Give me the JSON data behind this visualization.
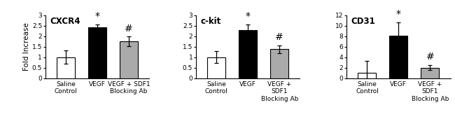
{
  "panels": [
    {
      "title": "CXCR4",
      "ylabel": "Fold Increase",
      "ylim": [
        0,
        3
      ],
      "yticks": [
        0,
        0.5,
        1.0,
        1.5,
        2.0,
        2.5,
        3.0
      ],
      "ytick_labels": [
        "0",
        "0.5",
        "1",
        "1.5",
        "2",
        "2.5",
        "3"
      ],
      "bar_values": [
        1.0,
        2.42,
        1.75
      ],
      "bar_errors": [
        0.32,
        0.15,
        0.22
      ],
      "bar_colors": [
        "white",
        "black",
        "#aaaaaa"
      ],
      "bar_edge_colors": [
        "black",
        "black",
        "black"
      ],
      "significance": [
        "",
        "*",
        "#"
      ],
      "xtick_labels": [
        "Saline\nControl",
        "VEGF",
        "VEGF + SDF1\nBlocking Ab"
      ]
    },
    {
      "title": "c-kit",
      "ylabel": "",
      "ylim": [
        0,
        3
      ],
      "yticks": [
        0,
        0.5,
        1.0,
        1.5,
        2.0,
        2.5,
        3.0
      ],
      "ytick_labels": [
        "0",
        "0.5",
        "1",
        "1.5",
        "2",
        "2.5",
        "3"
      ],
      "bar_values": [
        1.0,
        2.3,
        1.38
      ],
      "bar_errors": [
        0.28,
        0.27,
        0.18
      ],
      "bar_colors": [
        "white",
        "black",
        "#aaaaaa"
      ],
      "bar_edge_colors": [
        "black",
        "black",
        "black"
      ],
      "significance": [
        "",
        "*",
        "#"
      ],
      "xtick_labels": [
        "Saline\nControl",
        "VEGF",
        "VEGF +\nSDF1\nBlocking Ab"
      ]
    },
    {
      "title": "CD31",
      "ylabel": "",
      "ylim": [
        0,
        12
      ],
      "yticks": [
        0,
        2,
        4,
        6,
        8,
        10,
        12
      ],
      "ytick_labels": [
        "0",
        "2",
        "4",
        "6",
        "8",
        "10",
        "12"
      ],
      "bar_values": [
        1.0,
        8.1,
        2.0
      ],
      "bar_errors": [
        2.3,
        2.5,
        0.5
      ],
      "bar_colors": [
        "white",
        "black",
        "#aaaaaa"
      ],
      "bar_edge_colors": [
        "black",
        "black",
        "black"
      ],
      "significance": [
        "",
        "*",
        "#"
      ],
      "xtick_labels": [
        "Saline\nControl",
        "VEGF",
        "VEGF +\nSDF1\nBlocking Ab"
      ]
    }
  ],
  "background_color": "#ffffff",
  "bar_width": 0.58,
  "fontsize_title": 8.5,
  "fontsize_tick": 6.5,
  "fontsize_ylabel": 7.5,
  "fontsize_sig": 10
}
